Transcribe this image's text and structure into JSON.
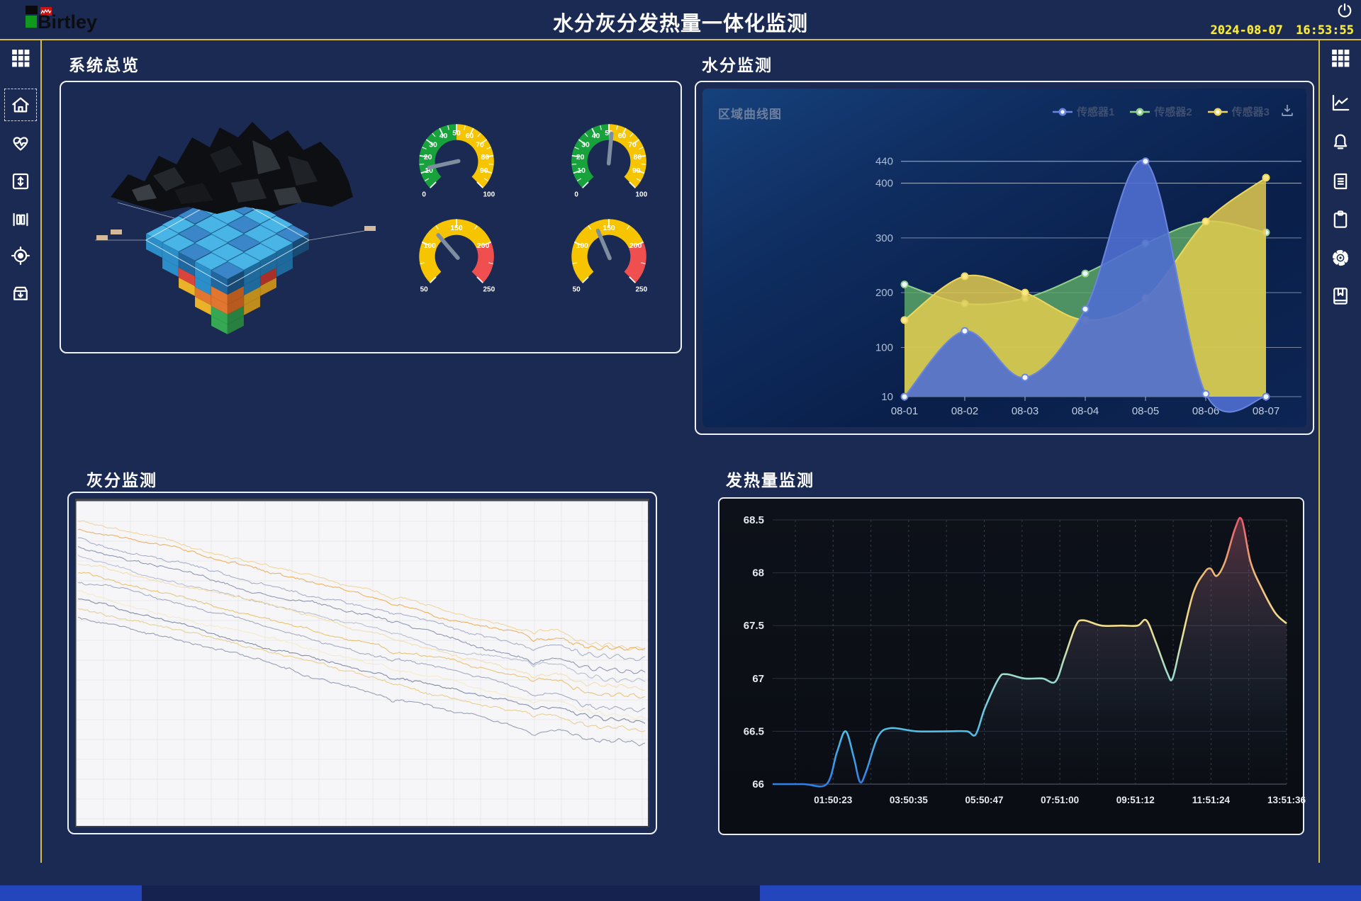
{
  "header": {
    "logo_text": "Birtley",
    "title": "水分灰分发热量一体化监测",
    "datetime": "2024-08-07 16:53:55",
    "power_icon": "power-icon"
  },
  "sidebar_left": {
    "icons": [
      "apps-grid-icon",
      "home-icon",
      "heart-pulse-icon",
      "vertical-expand-icon",
      "slider-panels-icon",
      "target-icon",
      "archive-download-icon"
    ],
    "active": "home-icon"
  },
  "sidebar_right": {
    "icons": [
      "apps-grid-icon",
      "line-chart-icon",
      "bell-icon",
      "document-icon",
      "clipboard-icon",
      "gear-icon",
      "bookmark-book-icon"
    ]
  },
  "sections": {
    "overview_title": "系统总览",
    "moisture_title": "水分监测",
    "ash_title": "灰分监测",
    "calorific_title": "发热量监测"
  },
  "moisture_header": {
    "chart_label": "区域曲线图",
    "download_icon": "download-icon"
  },
  "colors": {
    "accent_line": "#d9bc45",
    "page_bg": "#1b2a52",
    "clock_text": "#f7ec3f",
    "gauge_green": "#17a23b",
    "gauge_yellow": "#f6c500",
    "gauge_red": "#ef4f4f"
  },
  "chart_data": [
    {
      "id": "moisture",
      "type": "area",
      "title": "区域曲线图",
      "categories": [
        "08-01",
        "08-02",
        "08-03",
        "08-04",
        "08-05",
        "08-06",
        "08-07"
      ],
      "series": [
        {
          "name": "传感器1",
          "color": "#6a85de",
          "fill": "#4f6ed0",
          "values": [
            10,
            130,
            45,
            170,
            440,
            15,
            10
          ]
        },
        {
          "name": "传感器2",
          "color": "#8fd08a",
          "fill": "#5fae68",
          "values": [
            215,
            180,
            190,
            235,
            290,
            330,
            310
          ]
        },
        {
          "name": "传感器3",
          "color": "#eed65f",
          "fill": "#e3cb4f",
          "values": [
            150,
            230,
            200,
            150,
            190,
            330,
            410
          ]
        }
      ],
      "y_ticks": [
        10,
        100,
        200,
        300,
        400,
        440
      ],
      "ylim": [
        10,
        460
      ],
      "grid": "horizontal",
      "legend_position": "top-right"
    },
    {
      "id": "ash",
      "type": "line",
      "series_count": 12,
      "colors": [
        "#f2cf8e",
        "#eda544",
        "#9aa3bf",
        "#7d87a8",
        "#aeb5ca",
        "#f2d9a2",
        "#e6ba5e",
        "#959dba",
        "#f6e8c3",
        "#6f7999",
        "#e6c87f",
        "#868fa9"
      ],
      "background": "#f6f6f8"
    },
    {
      "id": "calorific",
      "type": "line",
      "x_tick_labels": [
        "01:50:23",
        "03:50:35",
        "05:50:47",
        "07:51:00",
        "09:51:12",
        "11:51:24",
        "13:51:36"
      ],
      "y_ticks": [
        66,
        66.5,
        67,
        67.5,
        68,
        68.5
      ],
      "ylim": [
        66,
        68.5
      ],
      "line_gradient_bottom_to_top": [
        "#2f80e8",
        "#4fc0e8",
        "#9adbd0",
        "#f2e08e",
        "#f0b873",
        "#e85a6e"
      ],
      "points": [
        [
          0,
          66
        ],
        [
          0.06,
          66
        ],
        [
          0.105,
          66
        ],
        [
          0.125,
          66.3
        ],
        [
          0.142,
          66.5
        ],
        [
          0.158,
          66.25
        ],
        [
          0.17,
          66.02
        ],
        [
          0.182,
          66.12
        ],
        [
          0.205,
          66.45
        ],
        [
          0.23,
          66.53
        ],
        [
          0.28,
          66.5
        ],
        [
          0.34,
          66.5
        ],
        [
          0.378,
          66.5
        ],
        [
          0.395,
          66.47
        ],
        [
          0.413,
          66.72
        ],
        [
          0.44,
          67.0
        ],
        [
          0.455,
          67.04
        ],
        [
          0.49,
          67.0
        ],
        [
          0.525,
          67.0
        ],
        [
          0.55,
          66.97
        ],
        [
          0.568,
          67.2
        ],
        [
          0.59,
          67.5
        ],
        [
          0.605,
          67.55
        ],
        [
          0.64,
          67.5
        ],
        [
          0.68,
          67.5
        ],
        [
          0.71,
          67.5
        ],
        [
          0.727,
          67.55
        ],
        [
          0.745,
          67.35
        ],
        [
          0.768,
          67.05
        ],
        [
          0.778,
          67.0
        ],
        [
          0.793,
          67.3
        ],
        [
          0.818,
          67.8
        ],
        [
          0.84,
          68.0
        ],
        [
          0.852,
          68.04
        ],
        [
          0.864,
          67.97
        ],
        [
          0.88,
          68.1
        ],
        [
          0.9,
          68.42
        ],
        [
          0.913,
          68.5
        ],
        [
          0.93,
          68.1
        ],
        [
          0.952,
          67.85
        ],
        [
          0.978,
          67.62
        ],
        [
          1,
          67.52
        ]
      ]
    },
    {
      "id": "gauges",
      "type": "gauge",
      "items": [
        {
          "min": 0,
          "max": 100,
          "value": 12,
          "major_step": 10,
          "minor_step": 5,
          "zones": [
            {
              "from": 0,
              "to": 50,
              "color": "#17a23b"
            },
            {
              "from": 50,
              "to": 100,
              "color": "#f6c500"
            }
          ]
        },
        {
          "min": 0,
          "max": 100,
          "value": 52,
          "major_step": 10,
          "minor_step": 5,
          "zones": [
            {
              "from": 0,
              "to": 50,
              "color": "#17a23b"
            },
            {
              "from": 50,
              "to": 100,
              "color": "#f6c500"
            }
          ]
        },
        {
          "min": 50,
          "max": 250,
          "value": 120,
          "major_step": 50,
          "minor_step": 25,
          "zones": [
            {
              "from": 50,
              "to": 200,
              "color": "#f6c500"
            },
            {
              "from": 200,
              "to": 250,
              "color": "#ef4f4f"
            }
          ]
        },
        {
          "min": 50,
          "max": 250,
          "value": 133,
          "major_step": 50,
          "minor_step": 25,
          "zones": [
            {
              "from": 50,
              "to": 200,
              "color": "#f6c500"
            },
            {
              "from": 200,
              "to": 250,
              "color": "#ef4f4f"
            }
          ]
        }
      ]
    }
  ]
}
